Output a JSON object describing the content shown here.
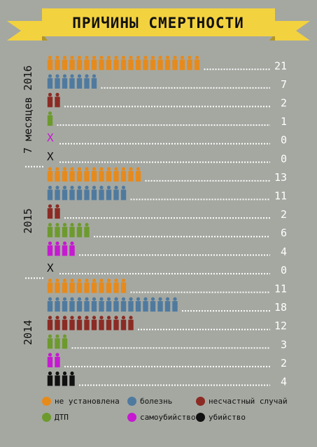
{
  "chart_data": {
    "type": "bar",
    "title": "ПРИЧИНЫ СМЕРТНОСТИ",
    "groups": [
      "7 месяцев 2016",
      "2015",
      "2014"
    ],
    "categories": [
      "не установлена",
      "болезнь",
      "несчастный случай",
      "ДТП",
      "самоубийство",
      "убийство"
    ],
    "series": [
      {
        "group": "7 месяцев 2016",
        "values": [
          21,
          7,
          2,
          1,
          0,
          0
        ]
      },
      {
        "group": "2015",
        "values": [
          13,
          11,
          2,
          6,
          4,
          0
        ]
      },
      {
        "group": "2014",
        "values": [
          11,
          18,
          12,
          3,
          2,
          4
        ]
      }
    ],
    "zero_marker": "X",
    "colors": [
      "#e68a1c",
      "#4f7aa0",
      "#8b2b24",
      "#6d9a2d",
      "#c619d1",
      "#111111"
    ],
    "legend_placement": "bottom"
  },
  "legend": [
    {
      "label": "не установлена",
      "color": "#e68a1c"
    },
    {
      "label": "болезнь",
      "color": "#4f7aa0"
    },
    {
      "label": "несчастный случай",
      "color": "#8b2b24"
    },
    {
      "label": "ДТП",
      "color": "#6d9a2d"
    },
    {
      "label": "самоубийство",
      "color": "#c619d1"
    },
    {
      "label": "убийство",
      "color": "#111111"
    }
  ],
  "banner": {
    "ribbon_color": "#f3d23f"
  }
}
